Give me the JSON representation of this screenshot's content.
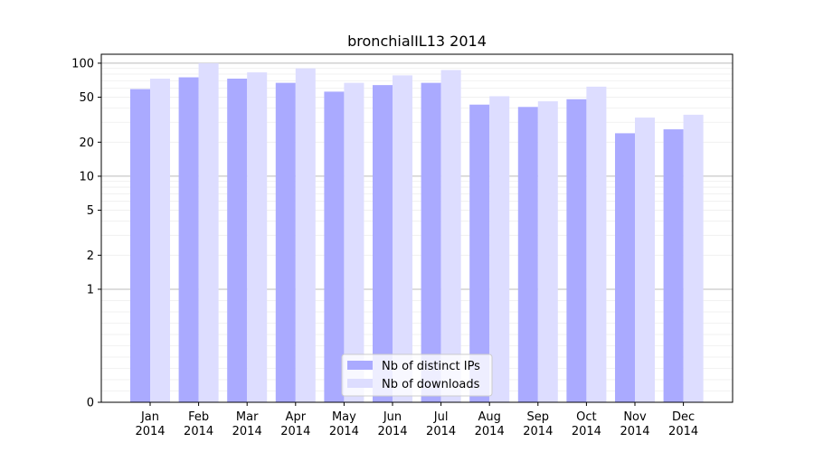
{
  "chart_data": {
    "type": "bar",
    "title": "bronchialIL13 2014",
    "xlabel": "",
    "ylabel": "",
    "categories": [
      "Jan\n2014",
      "Feb\n2014",
      "Mar\n2014",
      "Apr\n2014",
      "May\n2014",
      "Jun\n2014",
      "Jul\n2014",
      "Aug\n2014",
      "Sep\n2014",
      "Oct\n2014",
      "Nov\n2014",
      "Dec\n2014"
    ],
    "series": [
      {
        "name": "Nb of distinct IPs",
        "color": "#aaaaff",
        "values": [
          59,
          75,
          73,
          67,
          56,
          64,
          67,
          43,
          41,
          48,
          24,
          26
        ]
      },
      {
        "name": "Nb of downloads",
        "color": "#ddddff",
        "values": [
          73,
          100,
          83,
          90,
          67,
          78,
          87,
          51,
          46,
          62,
          33,
          35
        ]
      }
    ],
    "yscale": "symlog",
    "ylim": [
      0,
      120
    ],
    "yticks": [
      0,
      1,
      2,
      5,
      10,
      20,
      50,
      100
    ],
    "ytick_labels": [
      "0",
      "1",
      "2",
      "5",
      "10",
      "20",
      "50",
      "100"
    ],
    "grid": true,
    "legend_position": "bottom-center"
  }
}
